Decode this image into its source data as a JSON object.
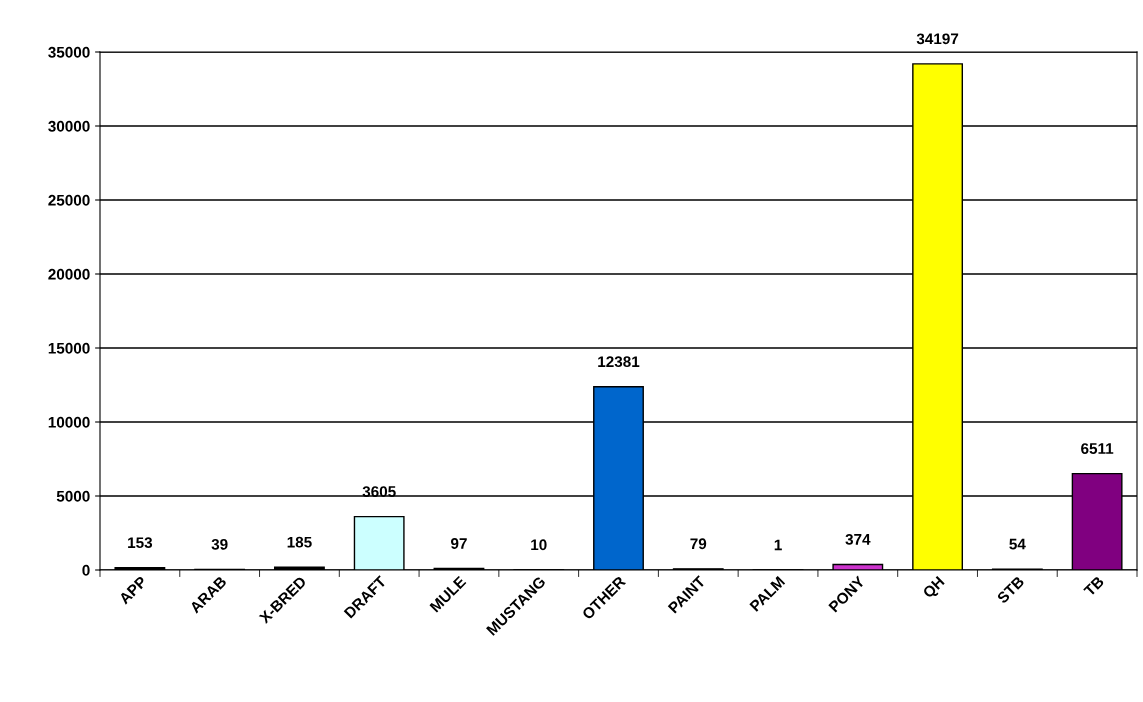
{
  "chart_data": {
    "type": "bar",
    "categories": [
      "APP",
      "ARAB",
      "X-BRED",
      "DRAFT",
      "MULE",
      "MUSTANG",
      "OTHER",
      "PAINT",
      "PALM",
      "PONY",
      "QH",
      "STB",
      "TB"
    ],
    "values": [
      153,
      39,
      185,
      3605,
      97,
      10,
      12381,
      79,
      1,
      374,
      34197,
      54,
      6511
    ],
    "colors": [
      "#000000",
      "#000000",
      "#000000",
      "#ccffff",
      "#000000",
      "#000000",
      "#0066cc",
      "#000000",
      "#000000",
      "#cc33cc",
      "#ffff00",
      "#000000",
      "#800080"
    ],
    "ylim": [
      0,
      35000
    ],
    "yticks": [
      0,
      5000,
      10000,
      15000,
      20000,
      25000,
      30000,
      35000
    ],
    "grid": "y",
    "data_labels": true
  }
}
